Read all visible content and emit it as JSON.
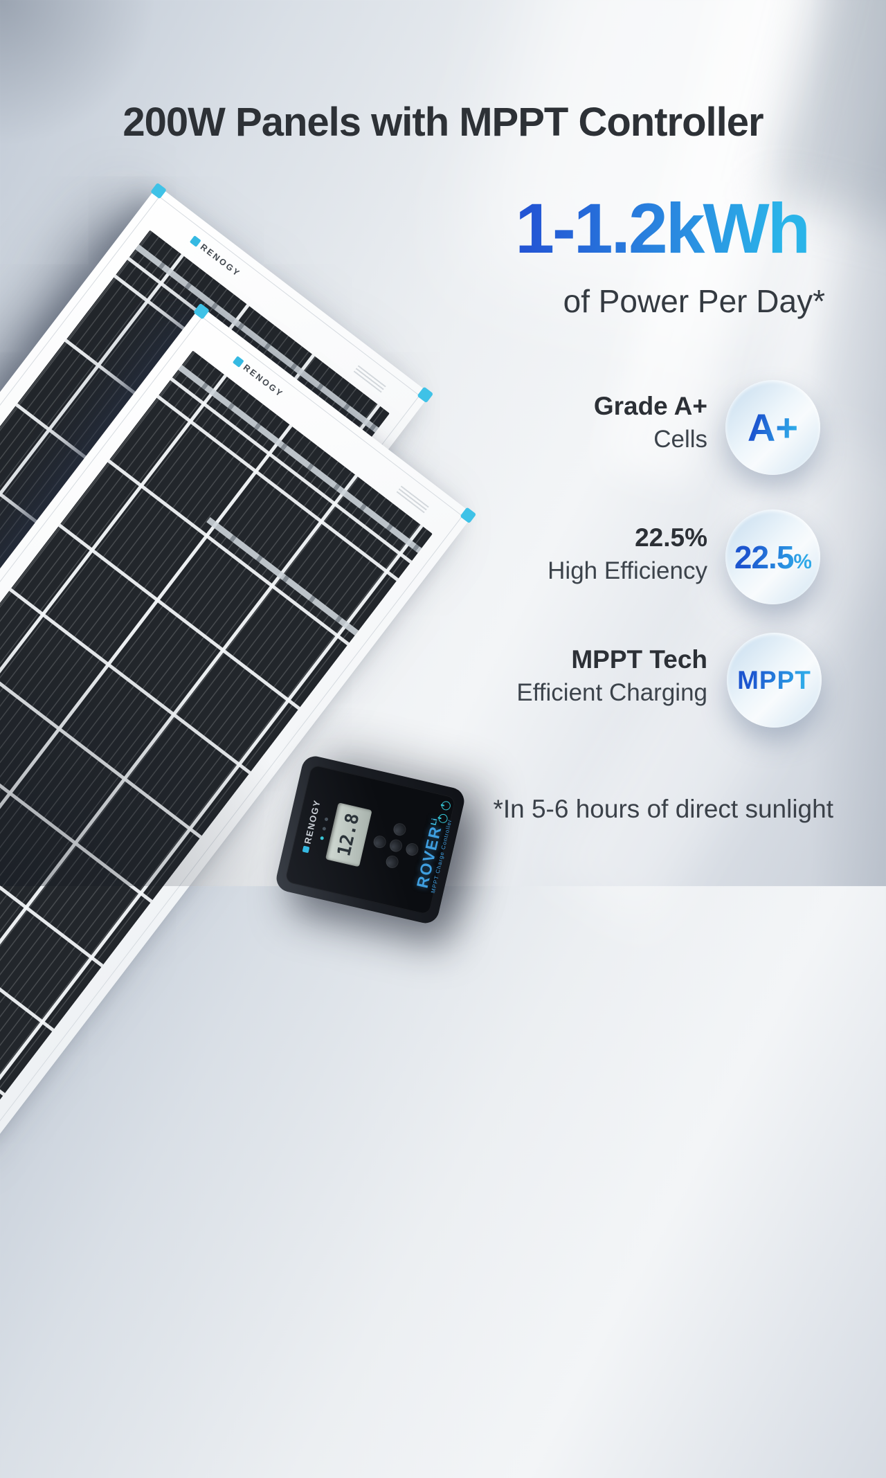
{
  "title": "200W Panels with MPPT Controller",
  "headline": {
    "value": "1-1.2kWh",
    "subtitle": "of Power Per Day*"
  },
  "features": [
    {
      "label_bold": "Grade A+",
      "label_regular": "Cells",
      "badge_value": "A+",
      "badge_unit": ""
    },
    {
      "label_bold": "22.5%",
      "label_regular": "High Efficiency",
      "badge_value": "22.5",
      "badge_unit": "%"
    },
    {
      "label_bold": "MPPT Tech",
      "label_regular": "Efficient Charging",
      "badge_value": "MPPT",
      "badge_unit": ""
    }
  ],
  "footnote": "*In 5-6 hours of direct sunlight",
  "panel": {
    "brand": "RENOGY"
  },
  "controller": {
    "brand": "RENOGY",
    "lcd_value": "12.8",
    "model": "ROVER",
    "model_suffix": "Li",
    "model_subtitle": "MPPT Charge Controller",
    "icons": [
      "power-icon",
      "status-icon"
    ]
  },
  "colors": {
    "headline_gradient_start": "#2355d4",
    "headline_gradient_end": "#2ab4e9",
    "badge_text_gradient_start": "#1c55cf",
    "badge_text_gradient_end": "#2fa9e8",
    "panel_corner_accent": "#3fc2e7",
    "bubble_background": "#cfe3f2",
    "controller_accent": "#3f9fe0",
    "title_color": "#2d3136"
  }
}
